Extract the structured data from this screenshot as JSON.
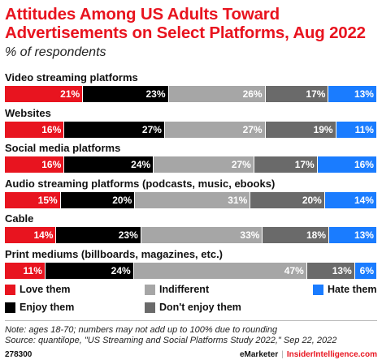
{
  "header": {
    "title": "Attitudes Among US Adults Toward Advertisements on Select Platforms, Aug 2022",
    "subtitle": "% of respondents"
  },
  "chart_data": {
    "type": "bar",
    "orientation": "horizontal",
    "stacked": true,
    "title": "Attitudes Among US Adults Toward Advertisements on Select Platforms, Aug 2022",
    "subtitle": "% of respondents",
    "categories": [
      "Video streaming platforms",
      "Websites",
      "Social media platforms",
      "Audio streaming platforms (podcasts, music, ebooks)",
      "Cable",
      "Print mediums (billboards, magazines, etc.)"
    ],
    "series": [
      {
        "name": "Love them",
        "color": "#e8141f",
        "values": [
          21,
          16,
          16,
          15,
          14,
          11
        ]
      },
      {
        "name": "Enjoy them",
        "color": "#000000",
        "values": [
          23,
          27,
          24,
          20,
          23,
          24
        ]
      },
      {
        "name": "Indifferent",
        "color": "#a6a6a6",
        "values": [
          26,
          27,
          27,
          31,
          33,
          47
        ]
      },
      {
        "name": "Don't enjoy them",
        "color": "#6a6a6a",
        "values": [
          17,
          19,
          17,
          20,
          18,
          13
        ]
      },
      {
        "name": "Hate them",
        "color": "#1a7cff",
        "values": [
          13,
          11,
          16,
          14,
          13,
          6
        ]
      }
    ],
    "legend": "bottom",
    "grid": false
  },
  "legend_items": [
    {
      "label": "Love them",
      "color": "#e8141f"
    },
    {
      "label": "Indifferent",
      "color": "#a6a6a6"
    },
    {
      "label": "Hate them",
      "color": "#1a7cff"
    },
    {
      "label": "Enjoy them",
      "color": "#000000"
    },
    {
      "label": "Don't enjoy them",
      "color": "#6a6a6a"
    }
  ],
  "notes": {
    "note": "Note: ages 18-70; numbers may not add up to 100% due to rounding",
    "source": "Source: quantilope, \"US Streaming and Social Platforms Study 2022,\" Sep 22, 2022"
  },
  "footer": {
    "chart_id": "278300",
    "brand_left": "eMarketer",
    "brand_sep": "|",
    "brand_right": "InsiderIntelligence.com"
  }
}
